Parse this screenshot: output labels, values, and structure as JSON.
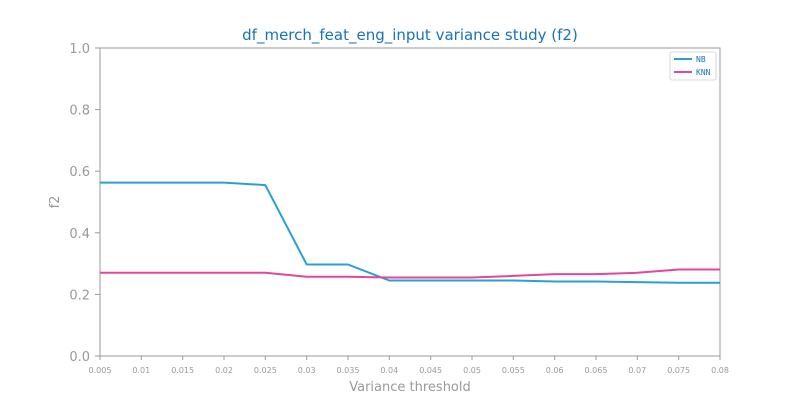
{
  "colors": {
    "title": "#1a73b8",
    "axis": "#999999",
    "nb": "#2a9fd6",
    "knn": "#e2479a"
  },
  "chart_data": {
    "type": "line",
    "title": "df_merch_feat_eng_input variance study (f2)",
    "xlabel": "Variance threshold",
    "ylabel": "f2",
    "ylim": [
      0.0,
      1.0
    ],
    "yticks": [
      "0.0",
      "0.2",
      "0.4",
      "0.6",
      "0.8",
      "1.0"
    ],
    "categories": [
      "0.005",
      "0.01",
      "0.015",
      "0.02",
      "0.025",
      "0.03",
      "0.035",
      "0.04",
      "0.045",
      "0.05",
      "0.055",
      "0.06",
      "0.065",
      "0.07",
      "0.075",
      "0.08"
    ],
    "grid": false,
    "legend_position": "top-right",
    "series": [
      {
        "name": "NB",
        "color": "#2a9fd6",
        "values": [
          0.563,
          0.563,
          0.563,
          0.563,
          0.555,
          0.297,
          0.297,
          0.245,
          0.245,
          0.245,
          0.245,
          0.242,
          0.242,
          0.24,
          0.238,
          0.238
        ]
      },
      {
        "name": "KNN",
        "color": "#e2479a",
        "values": [
          0.27,
          0.27,
          0.27,
          0.27,
          0.27,
          0.257,
          0.257,
          0.255,
          0.255,
          0.255,
          0.26,
          0.266,
          0.266,
          0.27,
          0.281,
          0.281
        ]
      }
    ]
  }
}
